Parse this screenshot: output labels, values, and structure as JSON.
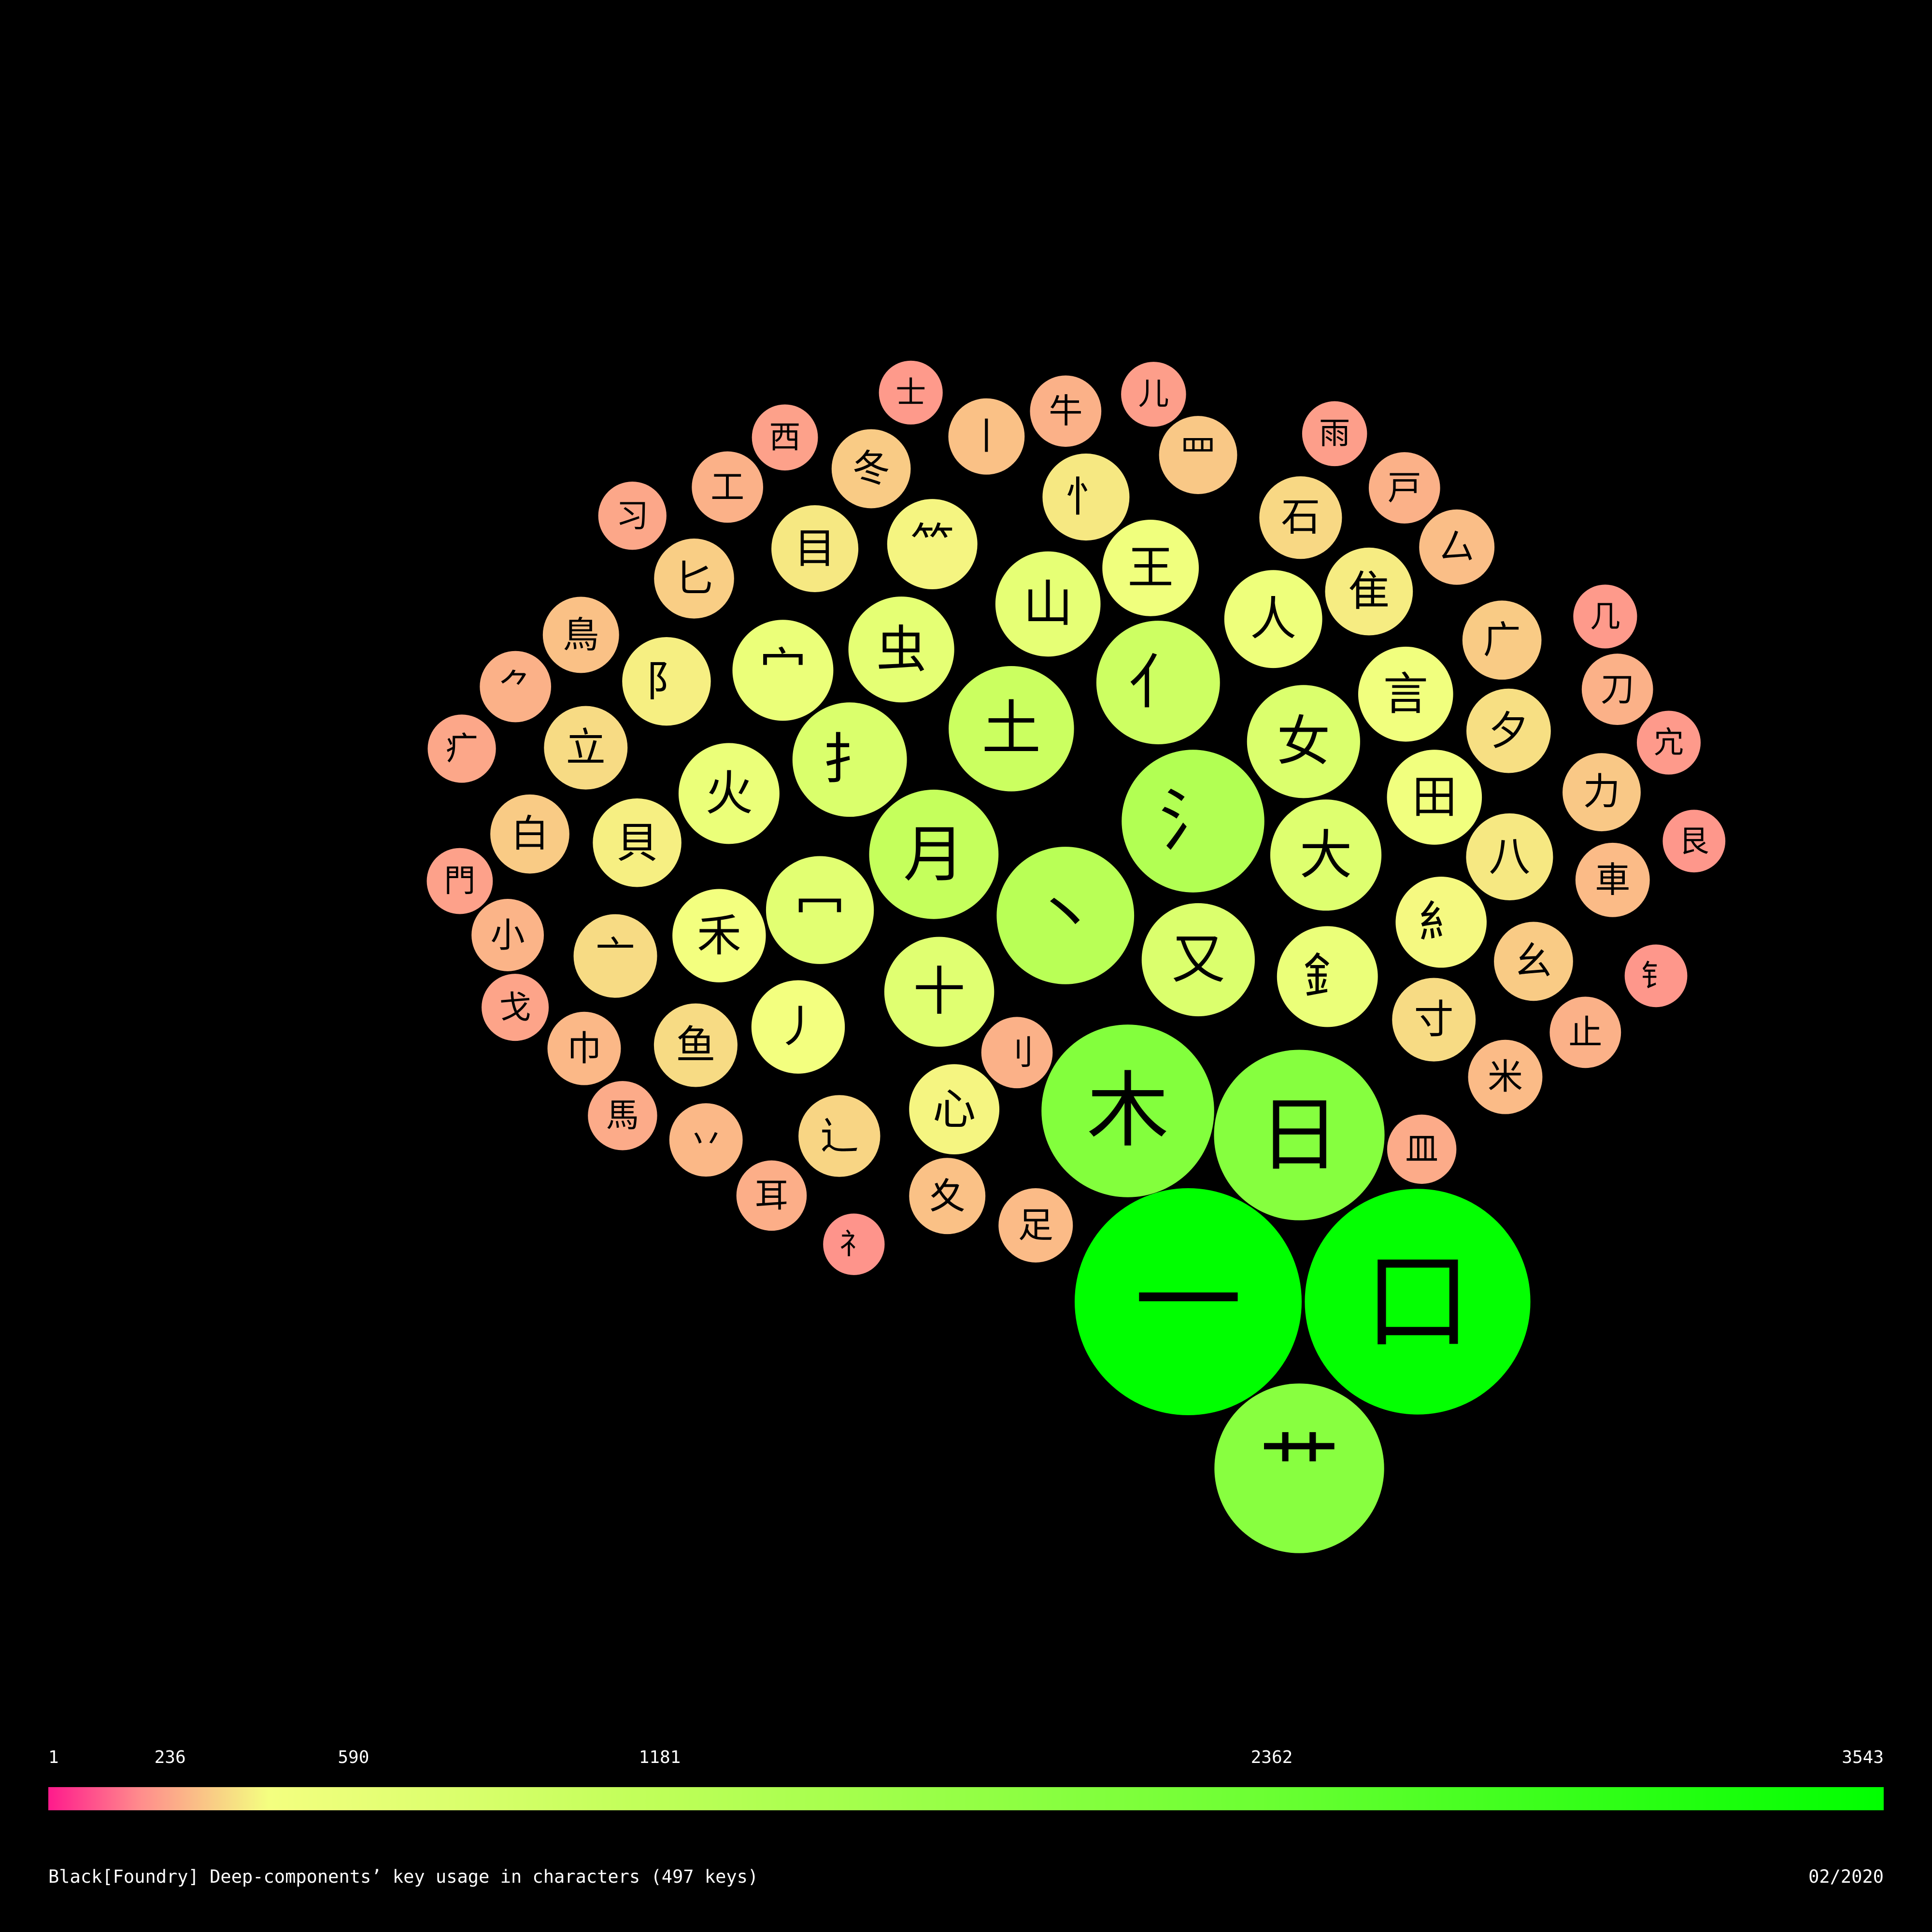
{
  "caption": "Black[Foundry] Deep-components’ key usage in characters (497 keys)",
  "date": "02/2020",
  "colors": {
    "background": "#000000",
    "low": "#ff1a8c",
    "mid": "#f4ff80",
    "high": "#00ff00",
    "label": "#000000"
  },
  "chart_data": {
    "type": "bubble",
    "value_range": [
      1,
      3543
    ],
    "color_scale": {
      "ticks": [
        1,
        236,
        590,
        1181,
        2362,
        3543
      ],
      "labels": [
        "1",
        "236",
        "590",
        "1181",
        "2362",
        "3543"
      ],
      "colors": [
        "#ff1a8c",
        "#ff8c8c",
        "#f4ff80",
        "#c2ff5a",
        "#6cff33",
        "#00ff00"
      ]
    },
    "bubbles": [
      {
        "key": "一",
        "value": 3543
      },
      {
        "key": "口",
        "value": 3500
      },
      {
        "key": "日",
        "value": 2000
      },
      {
        "key": "木",
        "value": 2050
      },
      {
        "key": "艹",
        "value": 1980
      },
      {
        "key": "丶",
        "value": 1300
      },
      {
        "key": "月",
        "value": 1150
      },
      {
        "key": "氵",
        "value": 1400
      },
      {
        "key": "亻",
        "value": 1050
      },
      {
        "key": "土",
        "value": 1080
      },
      {
        "key": "扌",
        "value": 900
      },
      {
        "key": "又",
        "value": 880
      },
      {
        "key": "山",
        "value": 760
      },
      {
        "key": "女",
        "value": 880
      },
      {
        "key": "大",
        "value": 850
      },
      {
        "key": "十",
        "value": 830
      },
      {
        "key": "冖",
        "value": 800
      },
      {
        "key": "禾",
        "value": 600
      },
      {
        "key": "火",
        "value": 700
      },
      {
        "key": "虫",
        "value": 770
      },
      {
        "key": "釒",
        "value": 700
      },
      {
        "key": "宀",
        "value": 700
      },
      {
        "key": "八",
        "value": 520
      },
      {
        "key": "糹",
        "value": 570
      },
      {
        "key": "田",
        "value": 620
      },
      {
        "key": "王",
        "value": 640
      },
      {
        "key": "人",
        "value": 660
      },
      {
        "key": "言",
        "value": 620
      },
      {
        "key": "目",
        "value": 520
      },
      {
        "key": "隹",
        "value": 530
      },
      {
        "key": "貝",
        "value": 540
      },
      {
        "key": "⺮",
        "value": 560
      },
      {
        "key": "阝",
        "value": 540
      },
      {
        "key": "忄",
        "value": 520
      },
      {
        "key": "心",
        "value": 560
      },
      {
        "key": "丿",
        "value": 600
      },
      {
        "key": "夊",
        "value": 400
      },
      {
        "key": "鳥",
        "value": 400
      },
      {
        "key": "广",
        "value": 430
      },
      {
        "key": "刂",
        "value": 350
      },
      {
        "key": "⺈",
        "value": 350
      },
      {
        "key": "辶",
        "value": 460
      },
      {
        "key": "車",
        "value": 380
      },
      {
        "key": "皿",
        "value": 330
      },
      {
        "key": "丷",
        "value": 370
      },
      {
        "key": "工",
        "value": 350
      },
      {
        "key": "巾",
        "value": 370
      },
      {
        "key": "罒",
        "value": 420
      },
      {
        "key": "寸",
        "value": 480
      },
      {
        "key": "幺",
        "value": 430
      },
      {
        "key": "牛",
        "value": 350
      },
      {
        "key": "鱼",
        "value": 480
      },
      {
        "key": "亠",
        "value": 480
      },
      {
        "key": "夕",
        "value": 490
      },
      {
        "key": "立",
        "value": 480
      },
      {
        "key": "石",
        "value": 470
      },
      {
        "key": "米",
        "value": 380
      },
      {
        "key": "匕",
        "value": 440
      },
      {
        "key": "馬",
        "value": 330
      },
      {
        "key": "几",
        "value": 280
      },
      {
        "key": "白",
        "value": 430
      },
      {
        "key": "冬",
        "value": 430
      },
      {
        "key": "力",
        "value": 420
      },
      {
        "key": "丨",
        "value": 400
      },
      {
        "key": "戸",
        "value": 350
      },
      {
        "key": "足",
        "value": 380
      },
      {
        "key": "厶",
        "value": 390
      },
      {
        "key": "小",
        "value": 360
      },
      {
        "key": "疒",
        "value": 320
      },
      {
        "key": "耳",
        "value": 340
      },
      {
        "key": "刀",
        "value": 350
      },
      {
        "key": "止",
        "value": 350
      },
      {
        "key": "习",
        "value": 320
      },
      {
        "key": "戈",
        "value": 310
      },
      {
        "key": "門",
        "value": 300
      },
      {
        "key": "儿",
        "value": 290
      },
      {
        "key": "雨",
        "value": 290
      },
      {
        "key": "宂",
        "value": 280
      },
      {
        "key": "西",
        "value": 300
      },
      {
        "key": "士",
        "value": 280
      },
      {
        "key": "礻",
        "value": 260
      },
      {
        "key": "艮",
        "value": 270
      },
      {
        "key": "钅",
        "value": 270
      }
    ]
  }
}
